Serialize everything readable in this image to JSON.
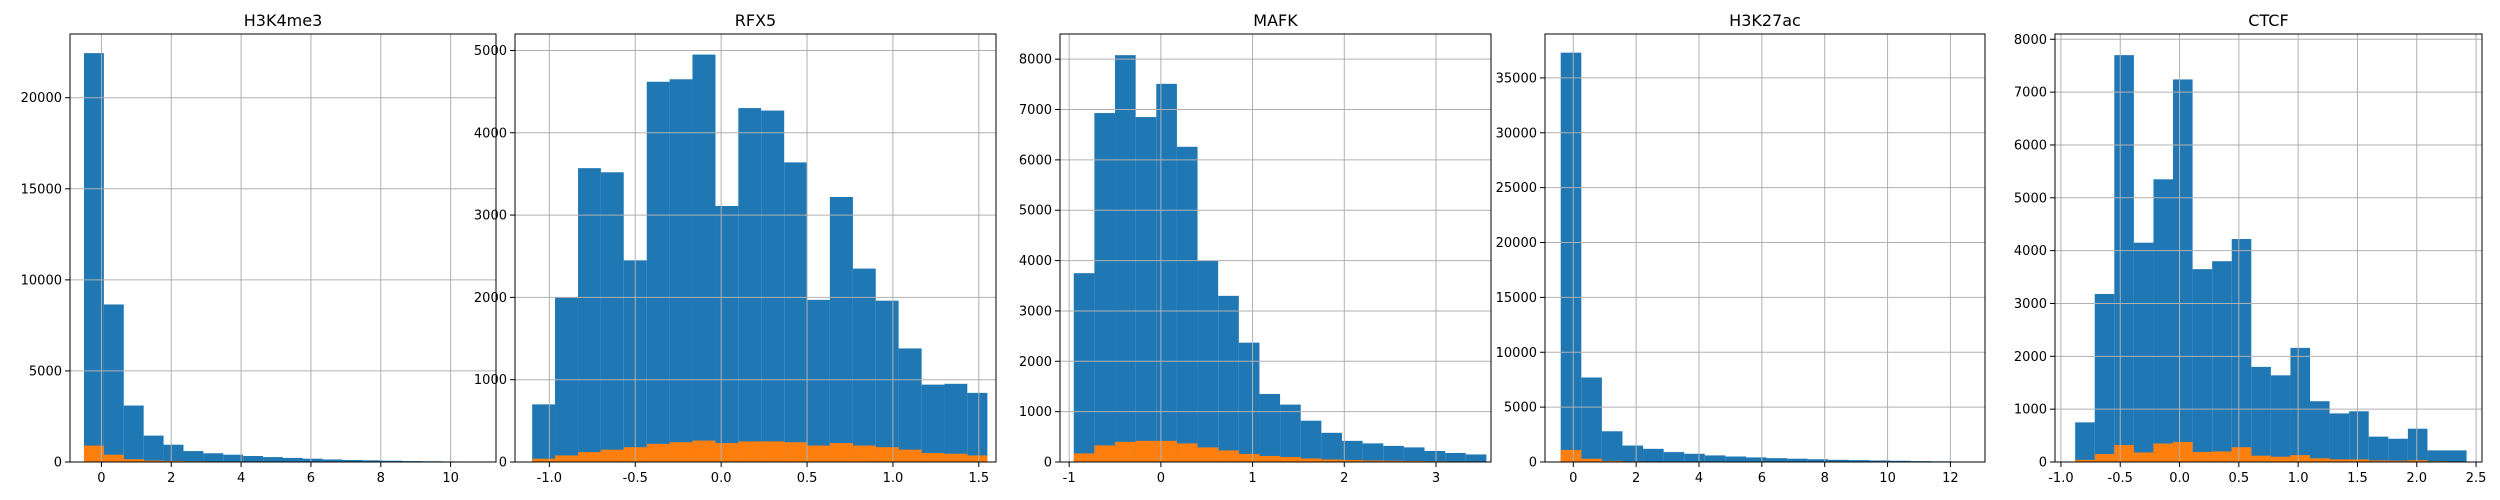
{
  "colors": {
    "series0": "#1f77b4",
    "series1": "#ff7f0e",
    "grid": "#b0b0b0"
  },
  "chart_data": [
    {
      "type": "bar",
      "title": "H3K4me3",
      "grid": true,
      "xlim": [
        -0.9,
        11.3
      ],
      "ylim": [
        0,
        23500
      ],
      "xticks": [
        0,
        2,
        4,
        6,
        8,
        10
      ],
      "yticks": [
        0,
        5000,
        10000,
        15000,
        20000
      ],
      "bin_edges": [
        -0.5,
        0.07,
        0.64,
        1.21,
        1.78,
        2.35,
        2.92,
        3.49,
        4.06,
        4.63,
        5.2,
        5.77,
        6.34,
        6.91,
        7.48,
        8.05,
        8.62,
        9.19,
        9.76,
        10.33,
        10.9
      ],
      "series": [
        {
          "values": [
            22450,
            8650,
            3100,
            1450,
            950,
            600,
            480,
            400,
            330,
            270,
            220,
            180,
            140,
            110,
            90,
            70,
            50,
            40,
            30,
            20
          ]
        },
        {
          "values": [
            900,
            400,
            150,
            80,
            60,
            40,
            30,
            20,
            15,
            10,
            8,
            6,
            5,
            4,
            3,
            2,
            2,
            1,
            1,
            1
          ]
        }
      ]
    },
    {
      "type": "bar",
      "title": "RFX5",
      "grid": true,
      "xlim": [
        -1.2,
        1.6
      ],
      "ylim": [
        0,
        5200
      ],
      "xticks": [
        -1.0,
        -0.5,
        0.0,
        0.5,
        1.0,
        1.5
      ],
      "yticks": [
        0,
        1000,
        2000,
        3000,
        4000,
        5000
      ],
      "bin_edges": [
        -1.1,
        -0.967,
        -0.833,
        -0.7,
        -0.567,
        -0.433,
        -0.3,
        -0.167,
        -0.033,
        0.1,
        0.233,
        0.367,
        0.5,
        0.633,
        0.767,
        0.9,
        1.033,
        1.167,
        1.3,
        1.433,
        1.55
      ],
      "series": [
        {
          "values": [
            700,
            2000,
            3570,
            3520,
            2450,
            4620,
            4650,
            4950,
            3110,
            4300,
            4270,
            3640,
            1970,
            3220,
            2350,
            1960,
            1380,
            940,
            950,
            840
          ]
        },
        {
          "values": [
            40,
            80,
            120,
            150,
            180,
            220,
            240,
            260,
            230,
            250,
            250,
            240,
            200,
            230,
            200,
            180,
            150,
            110,
            100,
            80
          ]
        }
      ]
    },
    {
      "type": "bar",
      "title": "MAFK",
      "grid": true,
      "xlim": [
        -1.1,
        3.6
      ],
      "ylim": [
        0,
        8500
      ],
      "xticks": [
        -1,
        0,
        1,
        2,
        3
      ],
      "yticks": [
        0,
        1000,
        2000,
        3000,
        4000,
        5000,
        6000,
        7000,
        8000
      ],
      "bin_edges": [
        -0.95,
        -0.725,
        -0.5,
        -0.275,
        -0.05,
        0.175,
        0.4,
        0.625,
        0.85,
        1.075,
        1.3,
        1.525,
        1.75,
        1.975,
        2.2,
        2.425,
        2.65,
        2.875,
        3.1,
        3.325,
        3.55
      ],
      "series": [
        {
          "values": [
            3750,
            6930,
            8080,
            6850,
            7510,
            6260,
            4000,
            3300,
            2370,
            1350,
            1140,
            820,
            580,
            420,
            370,
            320,
            290,
            220,
            180,
            150
          ]
        },
        {
          "values": [
            170,
            330,
            400,
            420,
            420,
            370,
            290,
            230,
            160,
            120,
            100,
            70,
            50,
            40,
            30,
            25,
            20,
            15,
            12,
            10
          ]
        }
      ]
    },
    {
      "type": "bar",
      "title": "H3K27ac",
      "grid": true,
      "xlim": [
        -0.9,
        13.1
      ],
      "ylim": [
        0,
        39000
      ],
      "xticks": [
        0,
        2,
        4,
        6,
        8,
        10,
        12
      ],
      "yticks": [
        0,
        5000,
        10000,
        15000,
        20000,
        25000,
        30000,
        35000
      ],
      "bin_edges": [
        -0.4,
        0.255,
        0.91,
        1.565,
        2.22,
        2.875,
        3.53,
        4.185,
        4.84,
        5.495,
        6.15,
        6.805,
        7.46,
        8.115,
        8.77,
        9.425,
        10.08,
        10.735,
        11.39,
        12.045,
        12.7
      ],
      "series": [
        {
          "values": [
            37300,
            7700,
            2800,
            1500,
            1200,
            900,
            750,
            600,
            500,
            420,
            350,
            300,
            250,
            200,
            170,
            140,
            110,
            80,
            60,
            40
          ]
        },
        {
          "values": [
            1100,
            300,
            100,
            60,
            40,
            30,
            25,
            20,
            15,
            12,
            10,
            8,
            6,
            5,
            4,
            3,
            3,
            2,
            2,
            1
          ]
        }
      ]
    },
    {
      "type": "bar",
      "title": "CTCF",
      "grid": true,
      "xlim": [
        -1.05,
        2.55
      ],
      "ylim": [
        0,
        8100
      ],
      "xticks": [
        -1.0,
        -0.5,
        0.0,
        0.5,
        1.0,
        1.5,
        2.0,
        2.5
      ],
      "yticks": [
        0,
        1000,
        2000,
        3000,
        4000,
        5000,
        6000,
        7000,
        8000
      ],
      "bin_edges": [
        -0.88,
        -0.715,
        -0.55,
        -0.385,
        -0.22,
        -0.055,
        0.11,
        0.275,
        0.44,
        0.605,
        0.77,
        0.935,
        1.1,
        1.265,
        1.43,
        1.595,
        1.76,
        1.925,
        2.09,
        2.255,
        2.42
      ],
      "series": [
        {
          "values": [
            750,
            3180,
            7700,
            4150,
            5350,
            7240,
            3650,
            3800,
            4220,
            1800,
            1640,
            2160,
            1150,
            920,
            960,
            480,
            440,
            630,
            220,
            220
          ]
        },
        {
          "values": [
            40,
            150,
            320,
            180,
            350,
            380,
            190,
            200,
            280,
            120,
            100,
            130,
            70,
            50,
            50,
            30,
            25,
            35,
            15,
            10
          ]
        }
      ]
    }
  ]
}
